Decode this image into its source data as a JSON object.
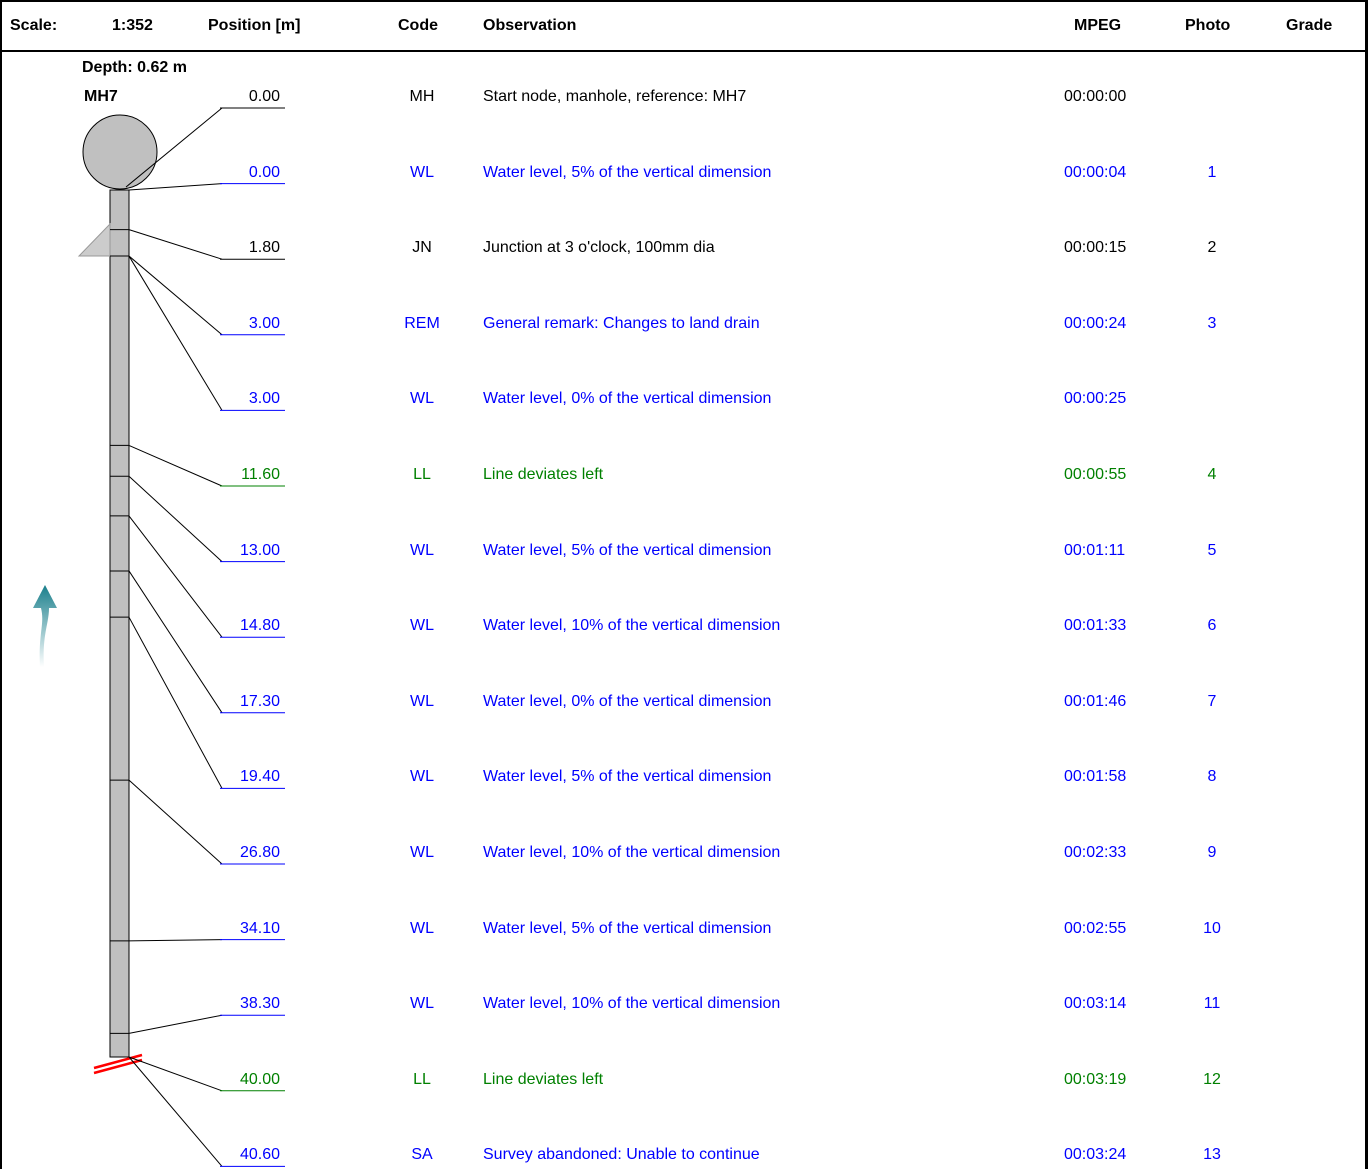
{
  "header": {
    "scale_label": "Scale:",
    "scale_value": "1:352",
    "position_label": "Position [m]",
    "code_label": "Code",
    "observation_label": "Observation",
    "mpeg_label": "MPEG",
    "photo_label": "Photo",
    "grade_label": "Grade"
  },
  "node": {
    "depth": "Depth: 0.62 m",
    "name": "MH7"
  },
  "flow_direction": "up",
  "colors": {
    "blue": "#0000ff",
    "black": "#000000",
    "green": "#008000",
    "pipe_fill": "#c0c0c0",
    "abandon_mark": "#ff0000",
    "flow_arrow": "#1a7f8c"
  },
  "pipe_length_m": 40.6,
  "rows": [
    {
      "position": "0.00",
      "code": "MH",
      "observation": "Start node, manhole, reference: MH7",
      "mpeg": "00:00:00",
      "photo": "",
      "grade": "",
      "color": "black"
    },
    {
      "position": "0.00",
      "code": "WL",
      "observation": "Water level, 5% of the vertical dimension",
      "mpeg": "00:00:04",
      "photo": "1",
      "grade": "",
      "color": "blue"
    },
    {
      "position": "1.80",
      "code": "JN",
      "observation": "Junction at 3 o'clock, 100mm dia",
      "mpeg": "00:00:15",
      "photo": "2",
      "grade": "",
      "color": "black"
    },
    {
      "position": "3.00",
      "code": "REM",
      "observation": "General remark: Changes to land drain",
      "mpeg": "00:00:24",
      "photo": "3",
      "grade": "",
      "color": "blue"
    },
    {
      "position": "3.00",
      "code": "WL",
      "observation": "Water level, 0% of the vertical dimension",
      "mpeg": "00:00:25",
      "photo": "",
      "grade": "",
      "color": "blue"
    },
    {
      "position": "11.60",
      "code": "LL",
      "observation": "Line deviates left",
      "mpeg": "00:00:55",
      "photo": "4",
      "grade": "",
      "color": "green"
    },
    {
      "position": "13.00",
      "code": "WL",
      "observation": "Water level, 5% of the vertical dimension",
      "mpeg": "00:01:11",
      "photo": "5",
      "grade": "",
      "color": "blue"
    },
    {
      "position": "14.80",
      "code": "WL",
      "observation": "Water level, 10% of the vertical dimension",
      "mpeg": "00:01:33",
      "photo": "6",
      "grade": "",
      "color": "blue"
    },
    {
      "position": "17.30",
      "code": "WL",
      "observation": "Water level, 0% of the vertical dimension",
      "mpeg": "00:01:46",
      "photo": "7",
      "grade": "",
      "color": "blue"
    },
    {
      "position": "19.40",
      "code": "WL",
      "observation": "Water level, 5% of the vertical dimension",
      "mpeg": "00:01:58",
      "photo": "8",
      "grade": "",
      "color": "blue"
    },
    {
      "position": "26.80",
      "code": "WL",
      "observation": "Water level, 10% of the vertical dimension",
      "mpeg": "00:02:33",
      "photo": "9",
      "grade": "",
      "color": "blue"
    },
    {
      "position": "34.10",
      "code": "WL",
      "observation": "Water level, 5% of the vertical dimension",
      "mpeg": "00:02:55",
      "photo": "10",
      "grade": "",
      "color": "blue"
    },
    {
      "position": "38.30",
      "code": "WL",
      "observation": "Water level, 10% of the vertical dimension",
      "mpeg": "00:03:14",
      "photo": "11",
      "grade": "",
      "color": "blue"
    },
    {
      "position": "40.00",
      "code": "LL",
      "observation": "Line deviates left",
      "mpeg": "00:03:19",
      "photo": "12",
      "grade": "",
      "color": "green"
    },
    {
      "position": "40.60",
      "code": "SA",
      "observation": "Survey abandoned: Unable to continue",
      "mpeg": "00:03:24",
      "photo": "13",
      "grade": "",
      "color": "blue"
    }
  ]
}
